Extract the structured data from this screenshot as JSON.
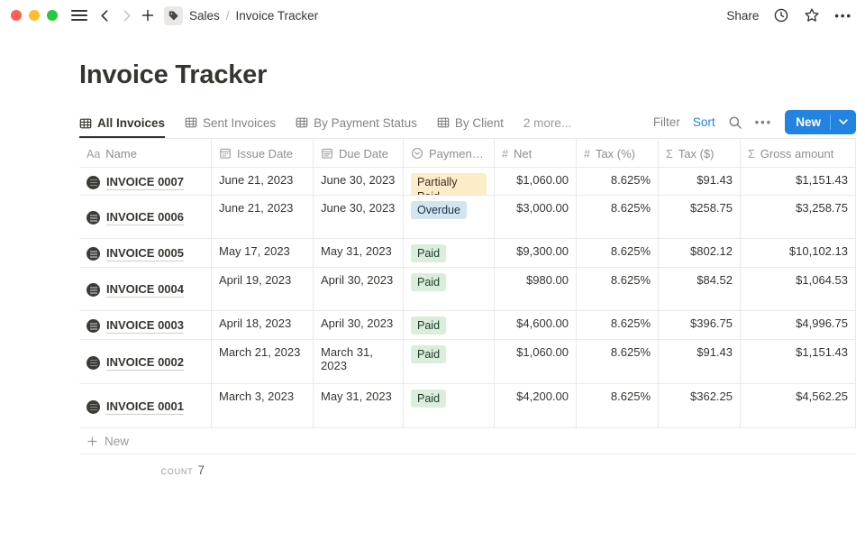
{
  "window": {
    "traffic_lights": {
      "close": "#ff5f57",
      "minimize": "#febc2e",
      "zoom": "#28c840"
    },
    "breadcrumb": {
      "parent": "Sales",
      "separator": "/",
      "current": "Invoice Tracker"
    },
    "share_label": "Share"
  },
  "page": {
    "title": "Invoice Tracker"
  },
  "tabs": [
    {
      "label": "All Invoices",
      "icon": "table",
      "active": true
    },
    {
      "label": "Sent Invoices",
      "icon": "table",
      "active": false
    },
    {
      "label": "By Payment Status",
      "icon": "table",
      "active": false
    },
    {
      "label": "By Client",
      "icon": "table",
      "active": false
    }
  ],
  "tabs_more": "2 more...",
  "toolbar": {
    "filter": "Filter",
    "sort": "Sort",
    "new_button": "New"
  },
  "table": {
    "columns": [
      {
        "label": "Name",
        "icon": "text"
      },
      {
        "label": "Issue Date",
        "icon": "calendar"
      },
      {
        "label": "Due Date",
        "icon": "date"
      },
      {
        "label": "Payment ...",
        "icon": "select"
      },
      {
        "label": "Net",
        "icon": "number"
      },
      {
        "label": "Tax (%)",
        "icon": "number"
      },
      {
        "label": "Tax ($)",
        "icon": "formula"
      },
      {
        "label": "Gross amount",
        "icon": "formula"
      }
    ],
    "rows": [
      {
        "name": "INVOICE 0007",
        "issue_date": "June 21, 2023",
        "due_date": "June 30, 2023",
        "status": "Partially Paid",
        "status_color": "yellow",
        "net": "$1,060.00",
        "tax_pct": "8.625%",
        "tax_usd": "$91.43",
        "gross": "$1,151.43"
      },
      {
        "name": "INVOICE 0006",
        "issue_date": "June 21, 2023",
        "due_date": "June 30, 2023",
        "status": "Overdue",
        "status_color": "blue",
        "net": "$3,000.00",
        "tax_pct": "8.625%",
        "tax_usd": "$258.75",
        "gross": "$3,258.75"
      },
      {
        "name": "INVOICE 0005",
        "issue_date": "May 17, 2023",
        "due_date": "May 31, 2023",
        "status": "Paid",
        "status_color": "green",
        "net": "$9,300.00",
        "tax_pct": "8.625%",
        "tax_usd": "$802.12",
        "gross": "$10,102.13"
      },
      {
        "name": "INVOICE 0004",
        "issue_date": "April 19, 2023",
        "due_date": "April 30, 2023",
        "status": "Paid",
        "status_color": "green",
        "net": "$980.00",
        "tax_pct": "8.625%",
        "tax_usd": "$84.52",
        "gross": "$1,064.53"
      },
      {
        "name": "INVOICE 0003",
        "issue_date": "April 18, 2023",
        "due_date": "April 30, 2023",
        "status": "Paid",
        "status_color": "green",
        "net": "$4,600.00",
        "tax_pct": "8.625%",
        "tax_usd": "$396.75",
        "gross": "$4,996.75"
      },
      {
        "name": "INVOICE 0002",
        "issue_date": "March 21, 2023",
        "due_date": "March 31, 2023",
        "status": "Paid",
        "status_color": "green",
        "net": "$1,060.00",
        "tax_pct": "8.625%",
        "tax_usd": "$91.43",
        "gross": "$1,151.43"
      },
      {
        "name": "INVOICE 0001",
        "issue_date": "March 3, 2023",
        "due_date": "May 31, 2023",
        "status": "Paid",
        "status_color": "green",
        "net": "$4,200.00",
        "tax_pct": "8.625%",
        "tax_usd": "$362.25",
        "gross": "$4,562.25"
      }
    ],
    "new_row_label": "New",
    "footer": {
      "count_label": "COUNT",
      "count_value": "7"
    }
  },
  "colors": {
    "accent_blue": "#2383e2",
    "badge_yellow_bg": "#fdecc8",
    "badge_blue_bg": "#d3e5ef",
    "badge_green_bg": "#dbeddb",
    "text_primary": "#37352f",
    "text_secondary": "#85837f",
    "border": "#e9e9e7"
  }
}
